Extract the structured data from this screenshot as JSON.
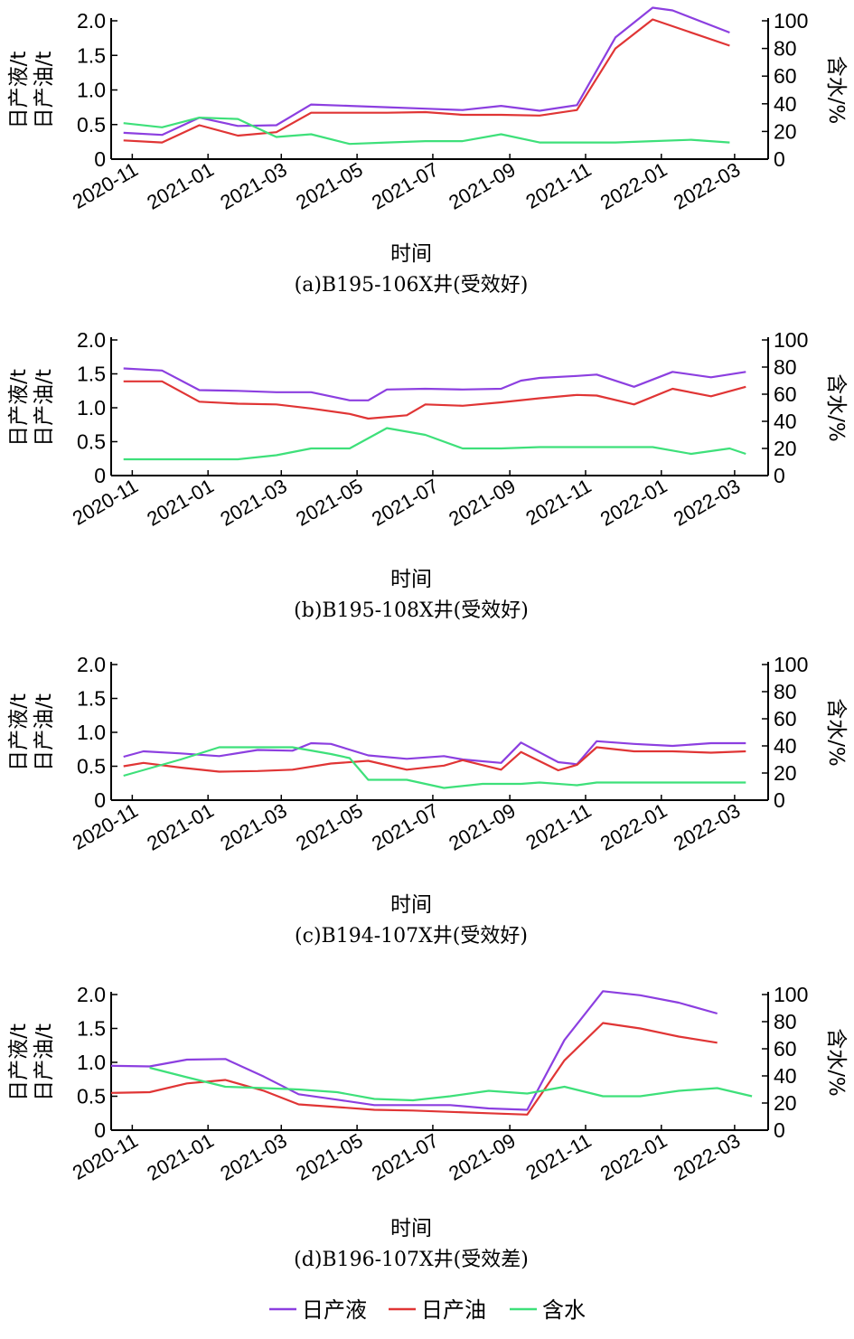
{
  "legend": [
    {
      "label": "日产液",
      "color": "#8c3fe0"
    },
    {
      "label": "日产油",
      "color": "#e03535"
    },
    {
      "label": "含水",
      "color": "#3ee07a"
    }
  ],
  "chart_data": [
    {
      "type": "line",
      "caption": "(a)B195-106X井(受效好)",
      "xlabel": "时间",
      "ylabel_left": [
        "日产液/t",
        "日产油/t"
      ],
      "ylabel_right": "含水/%",
      "ylim_left": [
        0,
        2.0
      ],
      "yticks_left": [
        "0",
        "0.5",
        "1.0",
        "1.5",
        "2.0"
      ],
      "ylim_right": [
        0,
        100
      ],
      "yticks_right": [
        "0",
        "20",
        "40",
        "60",
        "80",
        "100"
      ],
      "xrange": [
        "2020-10-15",
        "2022-03-28"
      ],
      "xticks": [
        "2020-11",
        "2021-01",
        "2021-03",
        "2021-05",
        "2021-07",
        "2021-09",
        "2021-11",
        "2022-01",
        "2022-03"
      ],
      "series": [
        {
          "name": "日产液",
          "axis": "left",
          "x": [
            "2020-10-25",
            "2020-11-25",
            "2020-12-25",
            "2021-01-25",
            "2021-02-25",
            "2021-03-25",
            "2021-04-25",
            "2021-05-25",
            "2021-06-25",
            "2021-07-25",
            "2021-08-25",
            "2021-09-25",
            "2021-10-25",
            "2021-11-25",
            "2021-12-25",
            "2022-01-10",
            "2022-02-25"
          ],
          "values": [
            0.38,
            0.35,
            0.6,
            0.48,
            0.49,
            0.79,
            0.77,
            0.75,
            0.73,
            0.71,
            0.77,
            0.7,
            0.78,
            1.76,
            2.19,
            2.15,
            1.83
          ]
        },
        {
          "name": "日产油",
          "axis": "left",
          "x": [
            "2020-10-25",
            "2020-11-25",
            "2020-12-25",
            "2021-01-25",
            "2021-02-25",
            "2021-03-25",
            "2021-04-25",
            "2021-05-25",
            "2021-06-25",
            "2021-07-25",
            "2021-08-25",
            "2021-09-25",
            "2021-10-25",
            "2021-11-25",
            "2021-12-25",
            "2022-02-25"
          ],
          "values": [
            0.27,
            0.24,
            0.49,
            0.34,
            0.39,
            0.67,
            0.67,
            0.67,
            0.68,
            0.64,
            0.64,
            0.63,
            0.71,
            1.6,
            2.02,
            1.64
          ]
        },
        {
          "name": "含水",
          "axis": "right",
          "x": [
            "2020-10-25",
            "2020-11-25",
            "2020-12-25",
            "2021-01-25",
            "2021-02-25",
            "2021-03-25",
            "2021-04-25",
            "2021-05-25",
            "2021-06-25",
            "2021-07-25",
            "2021-08-25",
            "2021-09-25",
            "2021-10-25",
            "2021-11-25",
            "2021-12-25",
            "2022-01-25",
            "2022-02-25"
          ],
          "values": [
            26,
            23,
            30,
            29,
            16,
            18,
            11,
            12,
            13,
            13,
            18,
            12,
            12,
            12,
            13,
            14,
            12
          ]
        }
      ]
    },
    {
      "type": "line",
      "caption": "(b)B195-108X井(受效好)",
      "xlabel": "时间",
      "ylabel_left": [
        "日产液/t",
        "日产油/t"
      ],
      "ylabel_right": "含水/%",
      "ylim_left": [
        0,
        2.0
      ],
      "yticks_left": [
        "0",
        "0.5",
        "1.0",
        "1.5",
        "2.0"
      ],
      "ylim_right": [
        0,
        100
      ],
      "yticks_right": [
        "0",
        "20",
        "40",
        "60",
        "80",
        "100"
      ],
      "xrange": [
        "2020-10-15",
        "2022-03-28"
      ],
      "xticks": [
        "2020-11",
        "2021-01",
        "2021-03",
        "2021-05",
        "2021-07",
        "2021-09",
        "2021-11",
        "2022-01",
        "2022-03"
      ],
      "series": [
        {
          "name": "日产液",
          "axis": "left",
          "x": [
            "2020-10-25",
            "2020-11-25",
            "2020-12-25",
            "2021-01-25",
            "2021-02-25",
            "2021-03-25",
            "2021-04-25",
            "2021-05-10",
            "2021-05-25",
            "2021-06-25",
            "2021-07-25",
            "2021-08-25",
            "2021-09-10",
            "2021-09-25",
            "2021-10-25",
            "2021-11-10",
            "2021-12-10",
            "2022-01-10",
            "2022-02-10",
            "2022-03-10"
          ],
          "values": [
            1.58,
            1.55,
            1.26,
            1.25,
            1.23,
            1.23,
            1.11,
            1.11,
            1.27,
            1.28,
            1.27,
            1.28,
            1.4,
            1.44,
            1.47,
            1.49,
            1.31,
            1.53,
            1.45,
            1.53
          ]
        },
        {
          "name": "日产油",
          "axis": "left",
          "x": [
            "2020-10-25",
            "2020-11-25",
            "2020-12-25",
            "2021-01-25",
            "2021-02-25",
            "2021-03-25",
            "2021-04-25",
            "2021-05-10",
            "2021-06-10",
            "2021-06-25",
            "2021-07-25",
            "2021-08-25",
            "2021-09-25",
            "2021-10-25",
            "2021-11-10",
            "2021-12-10",
            "2022-01-10",
            "2022-02-10",
            "2022-03-10"
          ],
          "values": [
            1.39,
            1.39,
            1.09,
            1.06,
            1.05,
            0.99,
            0.91,
            0.84,
            0.89,
            1.05,
            1.03,
            1.08,
            1.14,
            1.19,
            1.18,
            1.05,
            1.28,
            1.17,
            1.31
          ]
        },
        {
          "name": "含水",
          "axis": "right",
          "x": [
            "2020-10-25",
            "2020-11-25",
            "2020-12-25",
            "2021-01-25",
            "2021-02-25",
            "2021-03-25",
            "2021-04-25",
            "2021-05-25",
            "2021-06-25",
            "2021-07-25",
            "2021-08-25",
            "2021-09-25",
            "2021-10-25",
            "2021-11-25",
            "2021-12-25",
            "2022-01-25",
            "2022-02-25",
            "2022-03-10"
          ],
          "values": [
            12,
            12,
            12,
            12,
            15,
            20,
            20,
            35,
            30,
            20,
            20,
            21,
            21,
            21,
            21,
            16,
            20,
            16
          ]
        }
      ]
    },
    {
      "type": "line",
      "caption": "(c)B194-107X井(受效好)",
      "xlabel": "时间",
      "ylabel_left": [
        "日产液/t",
        "日产油/t"
      ],
      "ylabel_right": "含水/%",
      "ylim_left": [
        0,
        2.0
      ],
      "yticks_left": [
        "0",
        "0.5",
        "1.0",
        "1.5",
        "2.0"
      ],
      "ylim_right": [
        0,
        100
      ],
      "yticks_right": [
        "0",
        "20",
        "40",
        "60",
        "80",
        "100"
      ],
      "xrange": [
        "2020-10-15",
        "2022-03-28"
      ],
      "xticks": [
        "2020-11",
        "2021-01",
        "2021-03",
        "2021-05",
        "2021-07",
        "2021-09",
        "2021-11",
        "2022-01",
        "2022-03"
      ],
      "series": [
        {
          "name": "日产液",
          "axis": "left",
          "x": [
            "2020-10-25",
            "2020-11-10",
            "2020-12-10",
            "2021-01-10",
            "2021-02-10",
            "2021-03-10",
            "2021-03-25",
            "2021-04-10",
            "2021-05-10",
            "2021-06-10",
            "2021-07-10",
            "2021-07-25",
            "2021-08-25",
            "2021-09-10",
            "2021-10-10",
            "2021-10-25",
            "2021-11-10",
            "2021-12-10",
            "2022-01-10",
            "2022-02-10",
            "2022-03-10"
          ],
          "values": [
            0.64,
            0.72,
            0.69,
            0.65,
            0.74,
            0.73,
            0.84,
            0.83,
            0.66,
            0.61,
            0.65,
            0.6,
            0.55,
            0.85,
            0.56,
            0.53,
            0.87,
            0.83,
            0.8,
            0.84,
            0.84
          ]
        },
        {
          "name": "日产油",
          "axis": "left",
          "x": [
            "2020-10-25",
            "2020-11-10",
            "2020-12-10",
            "2021-01-10",
            "2021-02-10",
            "2021-03-10",
            "2021-04-10",
            "2021-05-10",
            "2021-06-10",
            "2021-07-10",
            "2021-07-25",
            "2021-08-25",
            "2021-09-10",
            "2021-10-10",
            "2021-10-25",
            "2021-11-10",
            "2021-12-10",
            "2022-01-10",
            "2022-02-10",
            "2022-03-10"
          ],
          "values": [
            0.5,
            0.55,
            0.48,
            0.42,
            0.43,
            0.45,
            0.54,
            0.58,
            0.45,
            0.51,
            0.59,
            0.45,
            0.71,
            0.44,
            0.52,
            0.78,
            0.72,
            0.72,
            0.7,
            0.72
          ]
        },
        {
          "name": "含水",
          "axis": "right",
          "x": [
            "2020-10-25",
            "2020-12-10",
            "2021-01-10",
            "2021-02-10",
            "2021-03-10",
            "2021-04-10",
            "2021-04-25",
            "2021-05-10",
            "2021-06-10",
            "2021-07-10",
            "2021-08-10",
            "2021-09-10",
            "2021-09-25",
            "2021-10-25",
            "2021-11-10",
            "2021-12-10",
            "2022-01-10",
            "2022-02-10",
            "2022-03-10"
          ],
          "values": [
            18,
            30,
            39,
            39,
            39,
            34,
            31,
            15,
            15,
            9,
            12,
            12,
            13,
            11,
            13,
            13,
            13,
            13,
            13
          ]
        }
      ]
    },
    {
      "type": "line",
      "caption": "(d)B196-107X井(受效差)",
      "xlabel": "时间",
      "ylabel_left": [
        "日产液/t",
        "日产油/t"
      ],
      "ylabel_right": "含水/%",
      "ylim_left": [
        0,
        2.0
      ],
      "yticks_left": [
        "0",
        "0.5",
        "1.0",
        "1.5",
        "2.0"
      ],
      "ylim_right": [
        0,
        100
      ],
      "yticks_right": [
        "0",
        "20",
        "40",
        "60",
        "80",
        "100"
      ],
      "xrange": [
        "2020-10-15",
        "2022-03-28"
      ],
      "xticks": [
        "2020-11",
        "2021-01",
        "2021-03",
        "2021-05",
        "2021-07",
        "2021-09",
        "2021-11",
        "2022-01",
        "2022-03"
      ],
      "series": [
        {
          "name": "日产液",
          "axis": "left",
          "x": [
            "2020-10-15",
            "2020-11-15",
            "2020-12-15",
            "2021-01-15",
            "2021-02-15",
            "2021-03-15",
            "2021-04-15",
            "2021-05-15",
            "2021-06-15",
            "2021-07-15",
            "2021-08-15",
            "2021-09-15",
            "2021-10-15",
            "2021-11-15",
            "2021-12-15",
            "2022-01-15",
            "2022-02-15"
          ],
          "values": [
            0.95,
            0.94,
            1.04,
            1.05,
            0.79,
            0.53,
            0.45,
            0.37,
            0.37,
            0.37,
            0.32,
            0.3,
            1.33,
            2.05,
            1.99,
            1.88,
            1.72
          ]
        },
        {
          "name": "日产油",
          "axis": "left",
          "x": [
            "2020-10-15",
            "2020-11-15",
            "2020-12-15",
            "2021-01-15",
            "2021-02-15",
            "2021-03-15",
            "2021-04-15",
            "2021-05-15",
            "2021-06-15",
            "2021-07-15",
            "2021-08-15",
            "2021-09-15",
            "2021-10-15",
            "2021-11-15",
            "2021-12-15",
            "2022-01-15",
            "2022-02-15"
          ],
          "values": [
            0.55,
            0.56,
            0.69,
            0.74,
            0.58,
            0.38,
            0.34,
            0.3,
            0.29,
            0.27,
            0.25,
            0.23,
            1.03,
            1.58,
            1.5,
            1.38,
            1.29
          ]
        },
        {
          "name": "含水",
          "axis": "right",
          "x": [
            "2020-11-15",
            "2020-12-15",
            "2021-01-15",
            "2021-02-15",
            "2021-03-15",
            "2021-04-15",
            "2021-05-15",
            "2021-06-15",
            "2021-07-15",
            "2021-08-15",
            "2021-09-15",
            "2021-10-15",
            "2021-11-15",
            "2021-12-15",
            "2022-01-15",
            "2022-02-15",
            "2022-03-15"
          ],
          "values": [
            46,
            39,
            32,
            31,
            30,
            28,
            23,
            22,
            25,
            29,
            27,
            32,
            25,
            25,
            29,
            31,
            25
          ]
        }
      ]
    }
  ]
}
